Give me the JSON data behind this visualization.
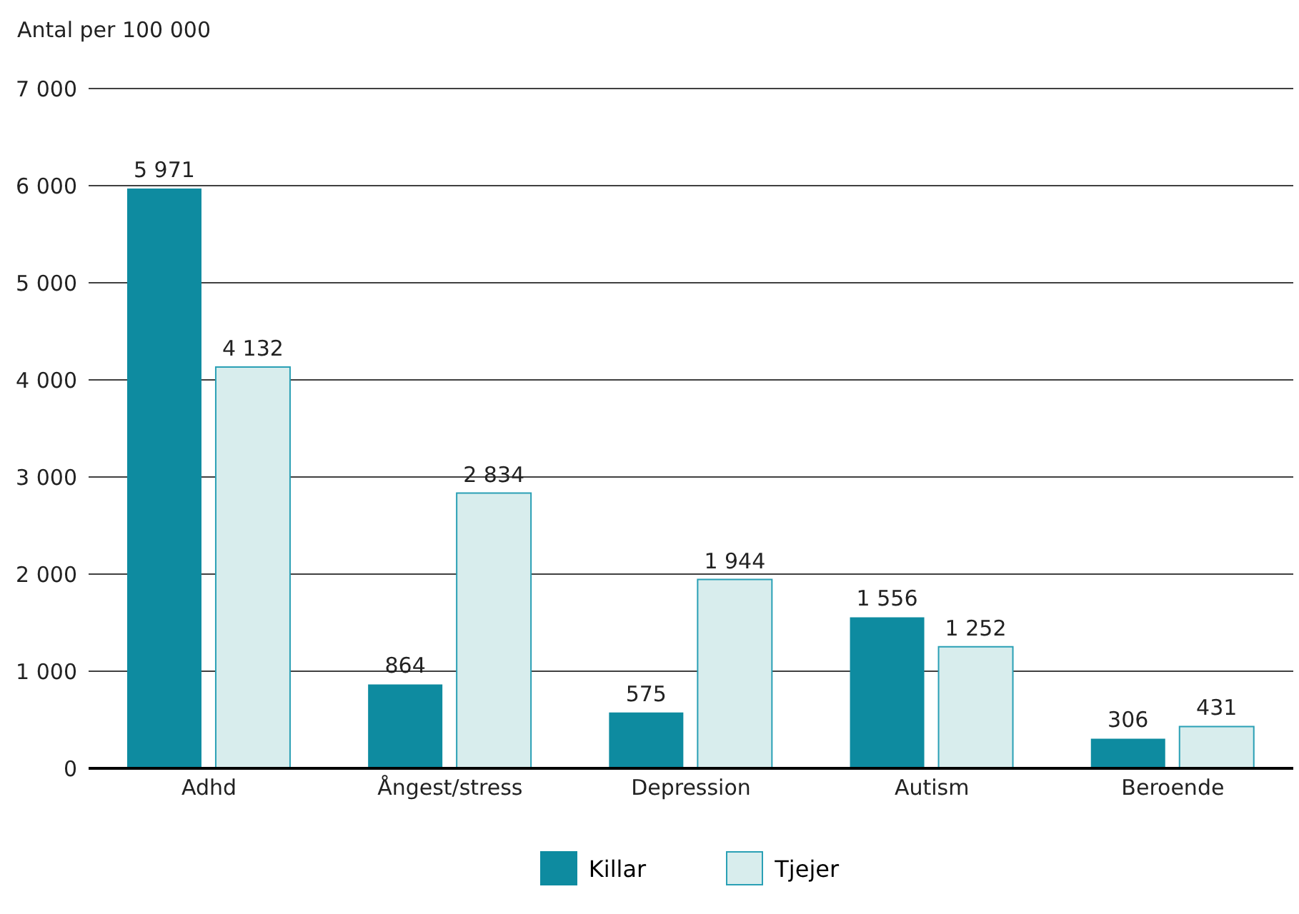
{
  "chart_data": {
    "type": "bar",
    "ylabel": "Antal per 100 000",
    "categories": [
      "Adhd",
      "Ångest/stress",
      "Depression",
      "Autism",
      "Beroende"
    ],
    "series": [
      {
        "name": "Killar",
        "color": "#0e8ba0",
        "values": [
          5971,
          864,
          575,
          1556,
          306
        ],
        "value_labels": [
          "5 971",
          "864",
          "575",
          "1 556",
          "306"
        ]
      },
      {
        "name": "Tjejer",
        "color": "#d8eded",
        "values": [
          4132,
          2834,
          1944,
          1252,
          431
        ],
        "value_labels": [
          "4 132",
          "2 834",
          "1 944",
          "1 252",
          "431"
        ]
      }
    ],
    "ylim": [
      0,
      7000
    ],
    "yticks": [
      0,
      {
        "value": 1000,
        "label": "1 000"
      },
      {
        "value": 2000,
        "label": "2 000"
      },
      {
        "value": 3000,
        "label": "3 000"
      },
      {
        "value": 4000,
        "label": "4 000"
      },
      {
        "value": 5000,
        "label": "5 000"
      },
      {
        "value": 6000,
        "label": "6 000"
      },
      {
        "value": 7000,
        "label": "7 000"
      }
    ],
    "grid": "y",
    "legend": "bottom"
  }
}
